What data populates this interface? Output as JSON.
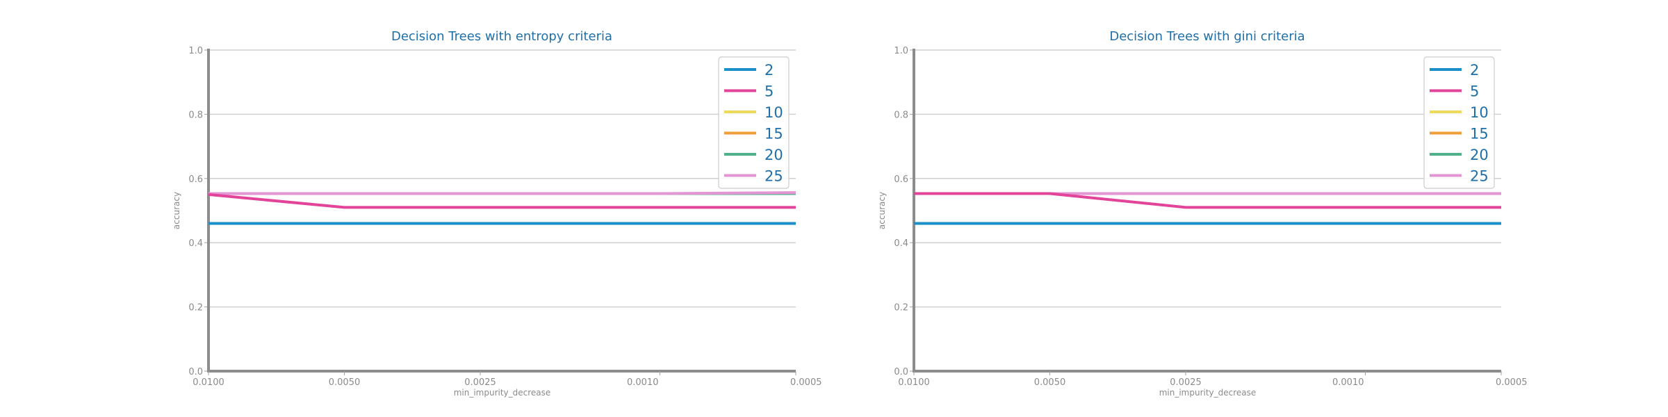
{
  "chart_data": [
    {
      "type": "line",
      "title": "Decision Trees with entropy criteria",
      "xlabel": "min_impurity_decrease",
      "ylabel": "accuracy",
      "x": [
        0.01,
        0.005,
        0.0025,
        0.001,
        0.0005
      ],
      "x_tick_labels": [
        "0.0100",
        "0.0050",
        "0.0025",
        "0.0010",
        "0.0005"
      ],
      "x_scale": "reversed log",
      "ylim": [
        0.0,
        1.0
      ],
      "y_tick_labels": [
        "0.0",
        "0.2",
        "0.4",
        "0.6",
        "0.8",
        "1.0"
      ],
      "grid": "horizontal",
      "legend_position": "top-right",
      "series": [
        {
          "name": "2",
          "color": "#1a8fc9",
          "values": [
            0.46,
            0.46,
            0.46,
            0.46,
            0.46
          ]
        },
        {
          "name": "5",
          "color": "#e2449a",
          "values": [
            0.55,
            0.51,
            0.51,
            0.51,
            0.51
          ]
        },
        {
          "name": "10",
          "color": "#f0d85a",
          "values": [
            0.553,
            0.553,
            0.553,
            0.553,
            0.553
          ]
        },
        {
          "name": "15",
          "color": "#ef9e3a",
          "values": [
            0.553,
            0.553,
            0.553,
            0.553,
            0.553
          ]
        },
        {
          "name": "20",
          "color": "#4fb08a",
          "values": [
            0.553,
            0.553,
            0.553,
            0.553,
            0.553
          ]
        },
        {
          "name": "25",
          "color": "#e396d3",
          "values": [
            0.553,
            0.553,
            0.553,
            0.553,
            0.556
          ]
        }
      ]
    },
    {
      "type": "line",
      "title": "Decision Trees with gini criteria",
      "xlabel": "min_impurity_decrease",
      "ylabel": "accuracy",
      "x": [
        0.01,
        0.005,
        0.0025,
        0.001,
        0.0005
      ],
      "x_tick_labels": [
        "0.0100",
        "0.0050",
        "0.0025",
        "0.0010",
        "0.0005"
      ],
      "x_scale": "reversed log",
      "ylim": [
        0.0,
        1.0
      ],
      "y_tick_labels": [
        "0.0",
        "0.2",
        "0.4",
        "0.6",
        "0.8",
        "1.0"
      ],
      "grid": "horizontal",
      "legend_position": "top-right",
      "series": [
        {
          "name": "2",
          "color": "#1a8fc9",
          "values": [
            0.46,
            0.46,
            0.46,
            0.46,
            0.46
          ]
        },
        {
          "name": "5",
          "color": "#e2449a",
          "values": [
            0.553,
            0.553,
            0.51,
            0.51,
            0.51
          ]
        },
        {
          "name": "10",
          "color": "#f0d85a",
          "values": [
            0.553,
            0.553,
            0.553,
            0.553,
            0.553
          ]
        },
        {
          "name": "15",
          "color": "#ef9e3a",
          "values": [
            0.553,
            0.553,
            0.553,
            0.553,
            0.553
          ]
        },
        {
          "name": "20",
          "color": "#4fb08a",
          "values": [
            0.553,
            0.553,
            0.553,
            0.553,
            0.553
          ]
        },
        {
          "name": "25",
          "color": "#e396d3",
          "values": [
            0.553,
            0.553,
            0.553,
            0.553,
            0.553
          ]
        }
      ]
    }
  ]
}
